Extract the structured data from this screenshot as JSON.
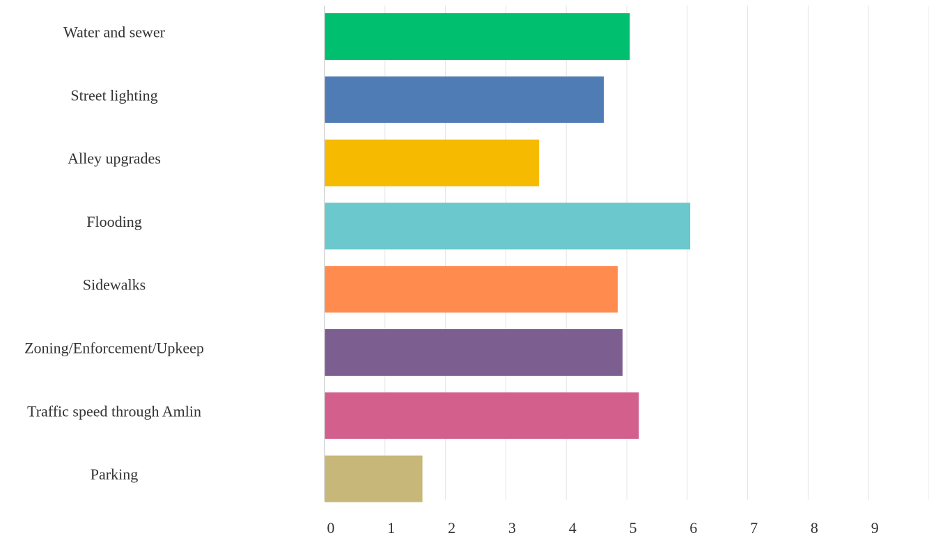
{
  "chart_data": {
    "type": "bar",
    "orientation": "horizontal",
    "title": "",
    "xlabel": "",
    "ylabel": "",
    "categories": [
      "Water and sewer",
      "Street lighting",
      "Alley upgrades",
      "Flooding",
      "Sidewalks",
      "Zoning/Enforcement/Upkeep",
      "Traffic speed through Amlin",
      "Parking"
    ],
    "values": [
      5.05,
      4.62,
      3.55,
      6.05,
      4.85,
      4.93,
      5.2,
      1.62
    ],
    "colors": [
      "#00bf6f",
      "#507cb6",
      "#f6bb00",
      "#6bc8cd",
      "#ff8b4f",
      "#7d5e90",
      "#d35f8d",
      "#c7b879"
    ],
    "xlim": [
      0,
      10
    ],
    "xticks": [
      "0",
      "1",
      "2",
      "3",
      "4",
      "5",
      "6",
      "7",
      "8",
      "9",
      "10"
    ],
    "grid": "vertical",
    "legend": "none"
  }
}
